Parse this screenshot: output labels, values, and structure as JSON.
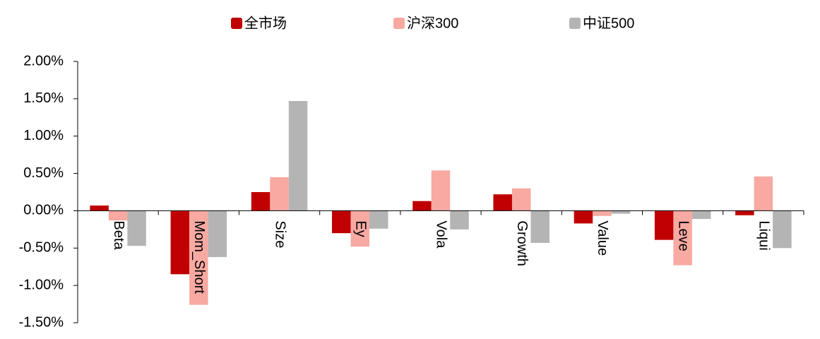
{
  "chart_data": {
    "type": "bar",
    "categories": [
      "Beta",
      "Mom_Short",
      "Size",
      "Ey",
      "Vola",
      "Growth",
      "Value",
      "Leve",
      "Liqui"
    ],
    "series": [
      {
        "name": "全市场",
        "color": "#c00000",
        "values": [
          0.07,
          -0.85,
          0.25,
          -0.3,
          0.13,
          0.22,
          -0.17,
          -0.39,
          -0.06
        ]
      },
      {
        "name": "沪深300",
        "color": "#f7a9a2",
        "values": [
          -0.13,
          -1.26,
          0.45,
          -0.48,
          0.54,
          0.3,
          -0.07,
          -0.73,
          0.46
        ]
      },
      {
        "name": "中证500",
        "color": "#b4b4b4",
        "values": [
          -0.47,
          -0.62,
          1.47,
          -0.24,
          -0.25,
          -0.43,
          -0.04,
          -0.11,
          -0.5
        ]
      }
    ],
    "ylim": [
      -1.5,
      2
    ],
    "yticks": [
      {
        "value": 2,
        "label": "2.00%"
      },
      {
        "value": 1.5,
        "label": "1.50%"
      },
      {
        "value": 1,
        "label": "1.00%"
      },
      {
        "value": 0.5,
        "label": "0.50%"
      },
      {
        "value": 0,
        "label": "0.00%"
      },
      {
        "value": -0.5,
        "label": "-0.50%"
      },
      {
        "value": -1,
        "label": "-1.00%"
      },
      {
        "value": -1.5,
        "label": "-1.50%"
      }
    ]
  }
}
